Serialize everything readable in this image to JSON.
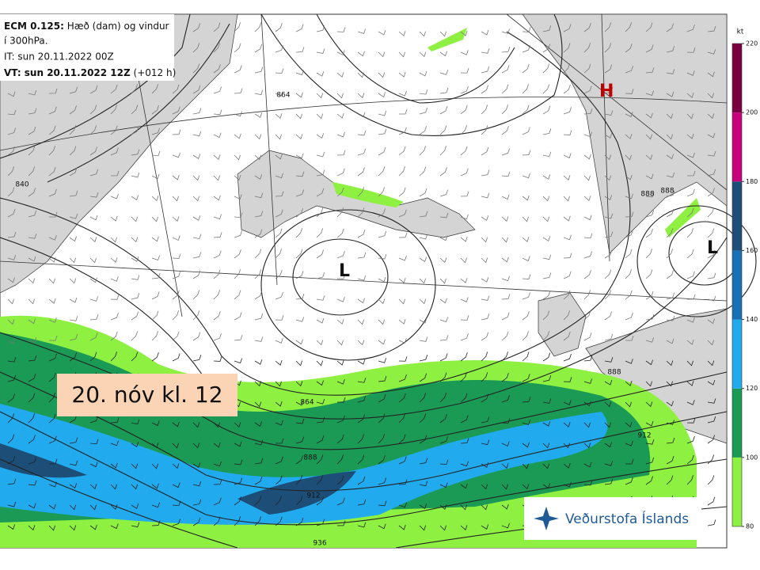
{
  "header": {
    "model": "ECM 0.125:",
    "line1": "Hæð (dam) og vindur",
    "line2": "í 300hPa.",
    "it": "IT: sun 20.11.2022 00Z",
    "vt": "VT: sun 20.11.2022 12Z",
    "lead": "(+012 h)"
  },
  "pressure_labels": [
    "L",
    "L",
    "H"
  ],
  "contour_labels": [
    "840",
    "864",
    "864",
    "888",
    "888",
    "888",
    "912",
    "912",
    "936",
    "888"
  ],
  "date_label": "20. nóv kl. 12",
  "logo": "Veðurstofa Íslands",
  "colorbar": {
    "unit": "kt",
    "ticks": [
      80,
      100,
      120,
      140,
      160,
      180,
      200,
      220
    ],
    "colors": [
      "#8ef040",
      "#1a9a55",
      "#22aaee",
      "#1a70b5",
      "#1c4e78",
      "#c8007c",
      "#7c0040"
    ]
  }
}
